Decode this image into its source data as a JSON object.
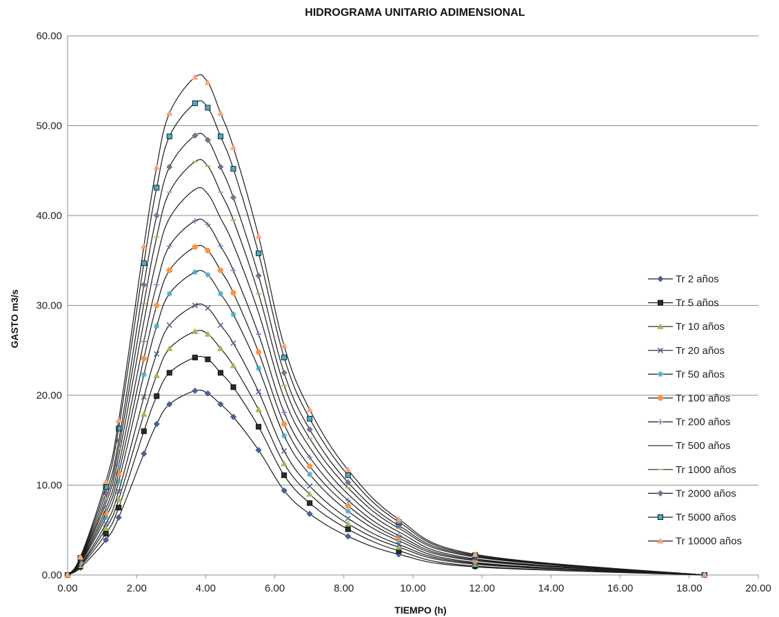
{
  "chart_data": {
    "type": "line",
    "title": "HIDROGRAMA UNITARIO ADIMENSIONAL",
    "xlabel": "TIEMPO (h)",
    "ylabel": "GASTO m3/s",
    "xlim": [
      0,
      20
    ],
    "ylim": [
      0,
      60
    ],
    "xticks": [
      "0.00",
      "2.00",
      "4.00",
      "6.00",
      "8.00",
      "10.00",
      "12.00",
      "14.00",
      "16.00",
      "18.00",
      "20.00"
    ],
    "yticks": [
      "0.00",
      "10.00",
      "20.00",
      "30.00",
      "40.00",
      "50.00",
      "60.00"
    ],
    "grid": "horizontal",
    "legend_position": "right",
    "x": [
      0.0,
      0.37,
      1.11,
      1.48,
      2.21,
      2.58,
      2.95,
      3.69,
      4.06,
      4.43,
      4.8,
      5.53,
      6.27,
      7.01,
      8.12,
      9.59,
      11.8,
      18.44
    ],
    "series": [
      {
        "name": "Tr 2 años",
        "marker": "diamond",
        "color": "#4a5f9e",
        "values": [
          0,
          0.8,
          3.9,
          6.4,
          13.5,
          16.8,
          19.0,
          20.5,
          20.2,
          19.0,
          17.6,
          13.9,
          9.4,
          6.8,
          4.3,
          2.3,
          0.9,
          0
        ]
      },
      {
        "name": "Tr 5 años",
        "marker": "square",
        "color": "#2b2b2b",
        "values": [
          0,
          0.95,
          4.6,
          7.5,
          16.0,
          19.9,
          22.5,
          24.2,
          24.0,
          22.5,
          20.9,
          16.5,
          11.1,
          8.0,
          5.1,
          2.7,
          1.0,
          0
        ]
      },
      {
        "name": "Tr 10 años",
        "marker": "triangle",
        "color": "#9bbb59",
        "values": [
          0,
          1.05,
          5.2,
          8.4,
          17.9,
          22.2,
          25.2,
          27.1,
          26.8,
          25.2,
          23.3,
          18.4,
          12.4,
          9.0,
          5.7,
          3.1,
          1.2,
          0
        ]
      },
      {
        "name": "Tr 20 años",
        "marker": "x",
        "color": "#4f5f8f",
        "values": [
          0,
          1.15,
          5.7,
          9.3,
          19.8,
          24.6,
          27.8,
          30.0,
          29.7,
          27.8,
          25.8,
          20.4,
          13.8,
          9.9,
          6.3,
          3.4,
          1.3,
          0
        ]
      },
      {
        "name": "Tr 50 años",
        "marker": "star",
        "color": "#4bacc6",
        "values": [
          0,
          1.3,
          6.4,
          10.4,
          22.3,
          27.7,
          31.3,
          33.7,
          33.4,
          31.3,
          29.0,
          23.0,
          15.5,
          11.2,
          7.1,
          3.8,
          1.4,
          0
        ]
      },
      {
        "name": "Tr 100 años",
        "marker": "circle",
        "color": "#f79646",
        "values": [
          0,
          1.4,
          6.9,
          11.3,
          24.1,
          30.0,
          33.9,
          36.5,
          36.1,
          33.9,
          31.4,
          24.8,
          16.8,
          12.1,
          7.7,
          4.1,
          1.6,
          0
        ]
      },
      {
        "name": "Tr 200 años",
        "marker": "plus",
        "color": "#6c82b8",
        "values": [
          0,
          1.5,
          7.4,
          12.2,
          26.0,
          32.3,
          36.6,
          39.4,
          39.0,
          36.6,
          33.9,
          26.8,
          18.1,
          13.1,
          8.3,
          4.4,
          1.7,
          0
        ]
      },
      {
        "name": "Tr 500 años",
        "marker": "none",
        "color": "#1a1a1a",
        "values": [
          0,
          1.6,
          8.0,
          13.2,
          28.2,
          35.1,
          39.7,
          42.9,
          42.4,
          39.7,
          36.8,
          29.2,
          19.7,
          14.2,
          9.0,
          4.8,
          1.8,
          0
        ]
      },
      {
        "name": "Tr 1000 años",
        "marker": "dash",
        "color": "#c3b16a",
        "values": [
          0,
          1.7,
          8.5,
          14.1,
          30.2,
          37.6,
          42.6,
          46.0,
          45.5,
          42.6,
          39.5,
          31.3,
          21.1,
          15.2,
          9.7,
          5.2,
          2.0,
          0
        ]
      },
      {
        "name": "Tr 2000 años",
        "marker": "diamond",
        "color": "#7f6f8f",
        "values": [
          0,
          1.8,
          9.1,
          14.9,
          32.3,
          40.0,
          45.4,
          48.9,
          48.4,
          45.4,
          42.0,
          33.3,
          22.5,
          16.2,
          10.3,
          5.5,
          2.1,
          0
        ]
      },
      {
        "name": "Tr 5000 años",
        "marker": "square",
        "color": "#4bacc6",
        "values": [
          0,
          1.9,
          9.8,
          16.3,
          34.7,
          43.1,
          48.8,
          52.5,
          52.0,
          48.8,
          45.2,
          35.8,
          24.2,
          17.4,
          11.1,
          5.9,
          2.2,
          0
        ]
      },
      {
        "name": "Tr 10000 años",
        "marker": "triangle",
        "color": "#f7a57a",
        "values": [
          0,
          2.0,
          10.4,
          17.2,
          36.6,
          45.4,
          51.4,
          55.4,
          54.8,
          51.4,
          47.6,
          37.7,
          25.5,
          18.4,
          11.7,
          6.2,
          2.3,
          0
        ]
      }
    ]
  }
}
